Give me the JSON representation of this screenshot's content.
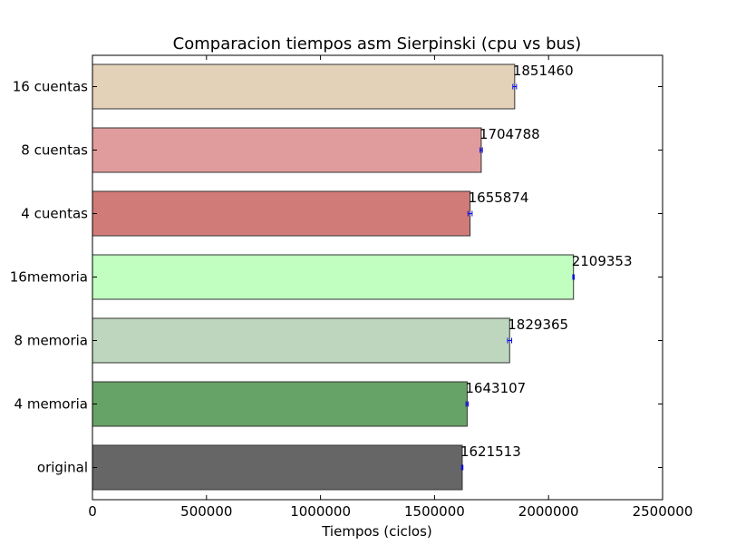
{
  "chart_data": {
    "type": "bar",
    "orientation": "horizontal",
    "title": "Comparacion tiempos asm Sierpinski (cpu vs bus)",
    "xlabel": "Tiempos (ciclos)",
    "ylabel": "",
    "xlim": [
      0,
      2500000
    ],
    "x_ticks": [
      0,
      500000,
      1000000,
      1500000,
      2000000,
      2500000
    ],
    "x_tick_labels": [
      "0",
      "500000",
      "1000000",
      "1500000",
      "2000000",
      "2500000"
    ],
    "grid": false,
    "categories": [
      "original",
      "4 memoria",
      "8 memoria",
      "16memoria",
      "4 cuentas",
      "8 cuentas",
      "16 cuentas"
    ],
    "values": [
      1621513,
      1643107,
      1829365,
      2109353,
      1655874,
      1704788,
      1851460
    ],
    "value_labels": [
      "1621513",
      "1643107",
      "1829365",
      "2109353",
      "1655874",
      "1704788",
      "1851460"
    ],
    "errors": [
      3000,
      5000,
      9000,
      3000,
      9000,
      5000,
      8000
    ],
    "colors": [
      "#666666",
      "#66a366",
      "#bdd6bd",
      "#c0ffc0",
      "#d17b79",
      "#e09c9c",
      "#e3d1b8"
    ],
    "error_color": "#0000ff"
  }
}
